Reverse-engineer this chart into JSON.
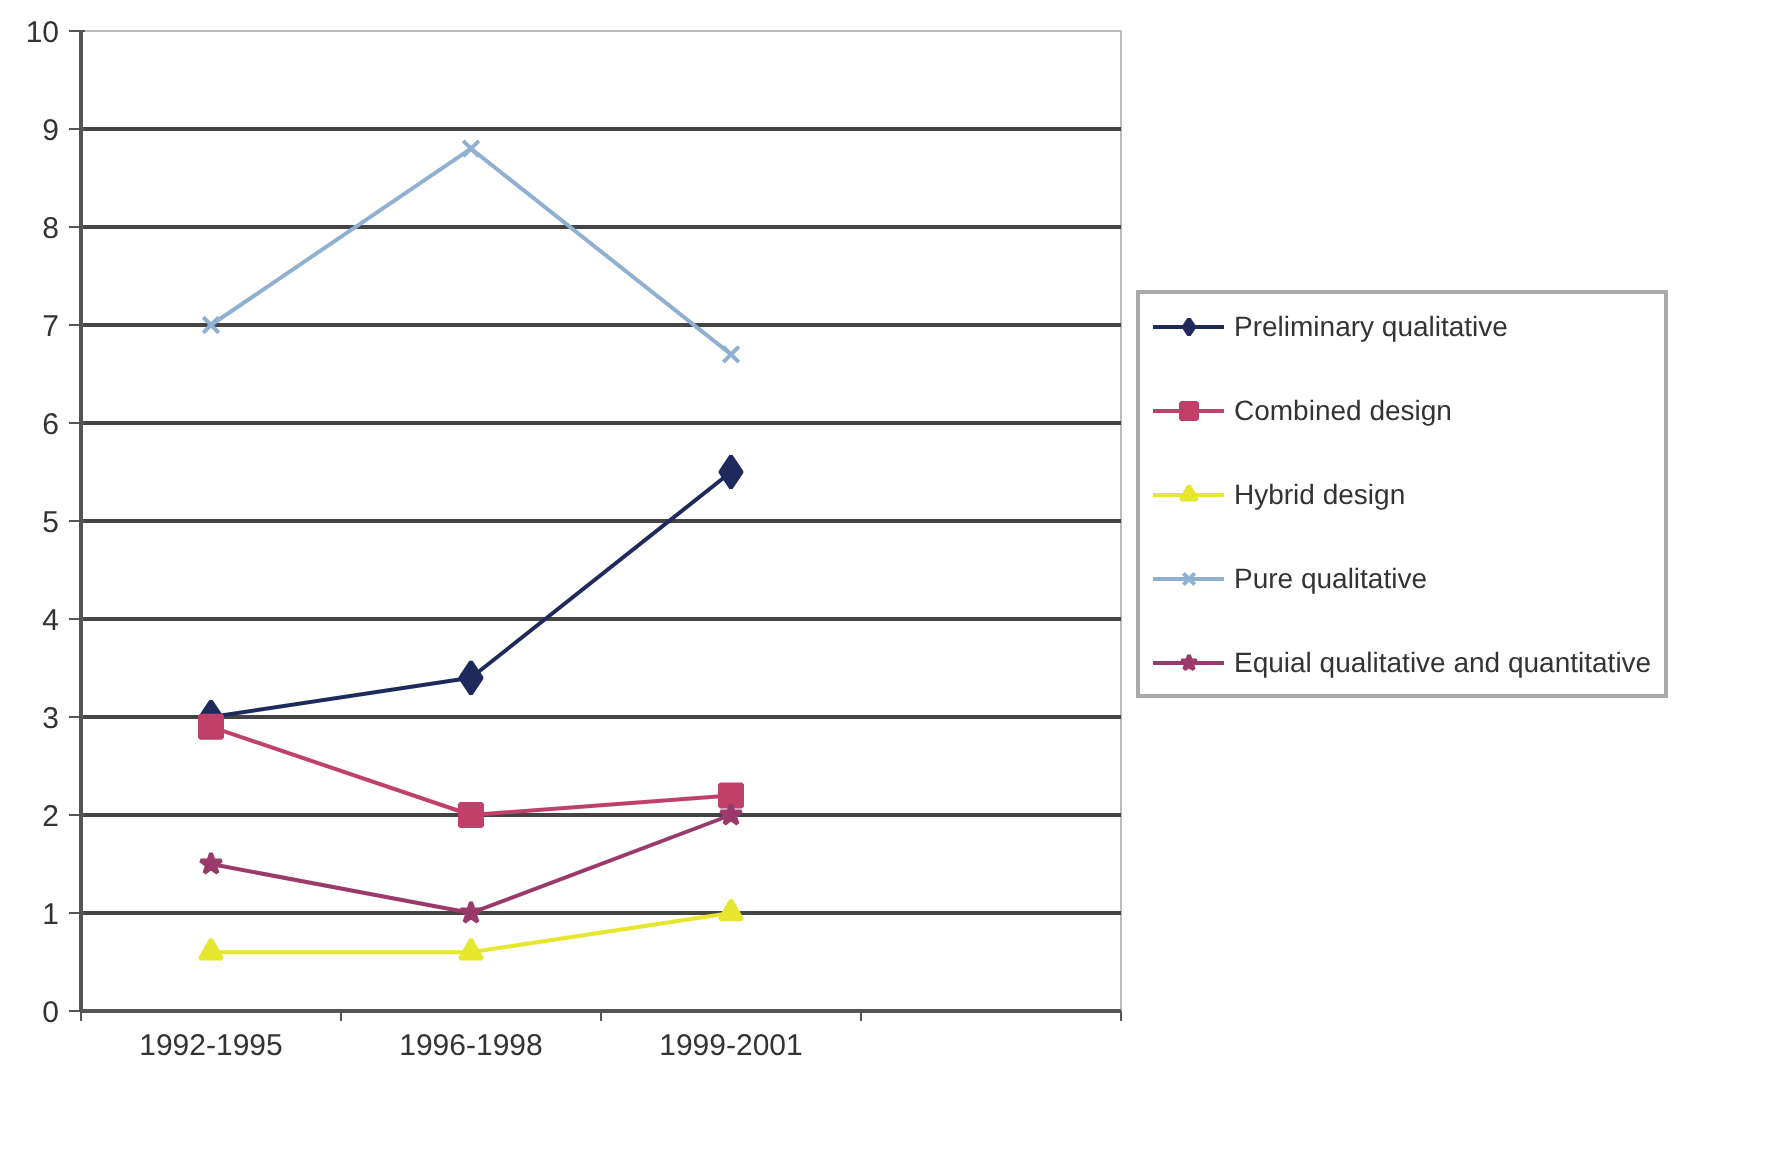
{
  "chart_data": {
    "type": "line",
    "categories": [
      "1992-1995",
      "1996-1998",
      "1999-2001",
      null
    ],
    "series": [
      {
        "name": "Preliminary qualitative",
        "color": "#1f2a5c",
        "marker": "diamond",
        "values": [
          3,
          3.4,
          5.5,
          null
        ]
      },
      {
        "name": "Combined design",
        "color": "#c0406a",
        "marker": "square",
        "values": [
          2.9,
          2.0,
          2.2,
          null
        ]
      },
      {
        "name": "Hybrid design",
        "color": "#e6e62e",
        "marker": "triangle",
        "values": [
          0.6,
          0.6,
          1.0,
          null
        ]
      },
      {
        "name": "Pure qualitative",
        "color": "#8fb0d0",
        "marker": "cross",
        "values": [
          7.0,
          8.8,
          6.7,
          null
        ]
      },
      {
        "name": "Equial qualitative and quantitative",
        "color": "#9a3a6a",
        "marker": "star",
        "values": [
          1.5,
          1.0,
          2.0,
          null
        ]
      }
    ],
    "ylim": [
      0,
      10
    ],
    "yticks": [
      0,
      1,
      2,
      3,
      4,
      5,
      6,
      7,
      8,
      9,
      10
    ],
    "grid": "y",
    "legend": "right"
  }
}
